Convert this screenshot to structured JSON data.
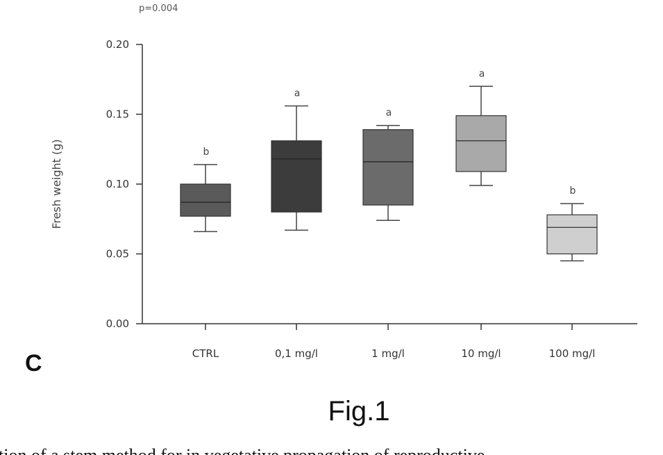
{
  "p_value": "p=0.004",
  "panel_label": "C",
  "figure_caption": "Fig.1",
  "truncated_text": "tion of a stem method for in vegetative propagation of reproductive",
  "chart_data": {
    "type": "box",
    "title": "",
    "xlabel": "",
    "ylabel": "Fresh weight (g)",
    "ylim": [
      0,
      0.2
    ],
    "yticks": [
      0.0,
      0.05,
      0.1,
      0.15,
      0.2
    ],
    "ytick_labels": [
      "0.00",
      "0.05",
      "0.10",
      "0.15",
      "0.20"
    ],
    "categories": [
      "CTRL",
      "0,1 mg/l",
      "1 mg/l",
      "10 mg/l",
      "100 mg/l"
    ],
    "significance": [
      "b",
      "a",
      "a",
      "a",
      "b"
    ],
    "colors": [
      "#5a5a5a",
      "#3c3c3c",
      "#6b6b6b",
      "#a9a9a9",
      "#cfcfcf"
    ],
    "boxes": [
      {
        "min": 0.066,
        "q1": 0.077,
        "median": 0.087,
        "q3": 0.1,
        "max": 0.114
      },
      {
        "min": 0.067,
        "q1": 0.08,
        "median": 0.118,
        "q3": 0.131,
        "max": 0.156
      },
      {
        "min": 0.074,
        "q1": 0.085,
        "median": 0.116,
        "q3": 0.139,
        "max": 0.142
      },
      {
        "min": 0.099,
        "q1": 0.109,
        "median": 0.131,
        "q3": 0.149,
        "max": 0.17
      },
      {
        "min": 0.045,
        "q1": 0.05,
        "median": 0.069,
        "q3": 0.078,
        "max": 0.086
      }
    ]
  }
}
